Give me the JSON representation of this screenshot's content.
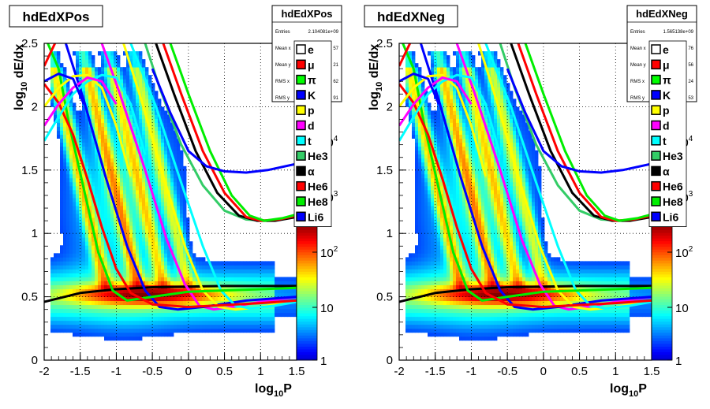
{
  "chart_data": [
    {
      "type": "heatmap",
      "title": "hdEdXPos",
      "xlabel": "log10P",
      "ylabel": "log10 dE/dx",
      "xlim": [
        -2,
        1.5
      ],
      "ylim": [
        0,
        2.5
      ],
      "xticks": [
        "-2",
        "-1.5",
        "-1",
        "-0.5",
        "0",
        "0.5",
        "1",
        "1.5"
      ],
      "yticks": [
        "0",
        "0.5",
        "1",
        "1.5",
        "2",
        "2.5"
      ],
      "grid": true,
      "zscale": "log",
      "zticks": [
        "1",
        "10",
        "10^2",
        "10^3",
        "10^4"
      ],
      "stats": {
        "title": "hdEdXPos",
        "rows": [
          {
            "label": "Entries",
            "value": "2.104081e+09"
          },
          {
            "label": "Mean x",
            "value": "57"
          },
          {
            "label": "Mean y",
            "value": "21"
          },
          {
            "label": "RMS x",
            "value": "62"
          },
          {
            "label": "RMS y",
            "value": "91"
          }
        ]
      },
      "legend": [
        {
          "name": "e",
          "color": "#ffffff"
        },
        {
          "name": "μ",
          "color": "#ff0000"
        },
        {
          "name": "π",
          "color": "#00ff00"
        },
        {
          "name": "K",
          "color": "#0000ff"
        },
        {
          "name": "p",
          "color": "#ffff00"
        },
        {
          "name": "d",
          "color": "#ff00ff"
        },
        {
          "name": "t",
          "color": "#00ffff"
        },
        {
          "name": "He3",
          "color": "#33cc66"
        },
        {
          "name": "α",
          "color": "#000000"
        },
        {
          "name": "He6",
          "color": "#ff0000"
        },
        {
          "name": "He8",
          "color": "#00ee00"
        },
        {
          "name": "Li6",
          "color": "#0000ff"
        }
      ]
    },
    {
      "type": "heatmap",
      "title": "hdEdXNeg",
      "xlabel": "log10P",
      "ylabel": "log10 dE/dx",
      "xlim": [
        -2,
        1.5
      ],
      "ylim": [
        0,
        2.5
      ],
      "xticks": [
        "-2",
        "-1.5",
        "-1",
        "-0.5",
        "0",
        "0.5",
        "1",
        "1.5"
      ],
      "yticks": [
        "0",
        "0.5",
        "1",
        "1.5",
        "2",
        "2.5"
      ],
      "grid": true,
      "zscale": "log",
      "zticks": [
        "1",
        "10",
        "10^2",
        "10^3",
        "10^4"
      ],
      "stats": {
        "title": "hdEdXNeg",
        "rows": [
          {
            "label": "Entries",
            "value": "1.565138e+09"
          },
          {
            "label": "Mean x",
            "value": "76"
          },
          {
            "label": "Mean y",
            "value": "56"
          },
          {
            "label": "RMS x",
            "value": "24"
          },
          {
            "label": "RMS y",
            "value": "53"
          }
        ]
      },
      "legend": [
        {
          "name": "e",
          "color": "#ffffff"
        },
        {
          "name": "μ",
          "color": "#ff0000"
        },
        {
          "name": "π",
          "color": "#00ff00"
        },
        {
          "name": "K",
          "color": "#0000ff"
        },
        {
          "name": "p",
          "color": "#ffff00"
        },
        {
          "name": "d",
          "color": "#ff00ff"
        },
        {
          "name": "t",
          "color": "#00ffff"
        },
        {
          "name": "He3",
          "color": "#33cc66"
        },
        {
          "name": "α",
          "color": "#000000"
        },
        {
          "name": "He6",
          "color": "#ff0000"
        },
        {
          "name": "He8",
          "color": "#00ee00"
        },
        {
          "name": "Li6",
          "color": "#0000ff"
        }
      ]
    }
  ],
  "curves": [
    {
      "color": "#000000",
      "points": [
        [
          -2,
          0.46
        ],
        [
          -1.5,
          0.53
        ],
        [
          -1,
          0.56
        ],
        [
          -0.5,
          0.575
        ],
        [
          0,
          0.58
        ],
        [
          0.5,
          0.585
        ],
        [
          1,
          0.585
        ],
        [
          1.5,
          0.585
        ]
      ]
    },
    {
      "color": "#ff00ff",
      "points": [
        [
          -1.2,
          2.5
        ],
        [
          -0.95,
          2.1
        ],
        [
          -0.6,
          1.5
        ],
        [
          -0.3,
          0.95
        ],
        [
          -0.05,
          0.6
        ],
        [
          0.15,
          0.43
        ],
        [
          0.35,
          0.4
        ],
        [
          0.6,
          0.42
        ],
        [
          1,
          0.46
        ],
        [
          1.5,
          0.5
        ]
      ]
    },
    {
      "color": "#0000ff",
      "points": [
        [
          -1.7,
          2.5
        ],
        [
          -1.45,
          2.05
        ],
        [
          -1.15,
          1.45
        ],
        [
          -0.85,
          0.9
        ],
        [
          -0.6,
          0.55
        ],
        [
          -0.4,
          0.42
        ],
        [
          -0.15,
          0.4
        ],
        [
          0.2,
          0.42
        ],
        [
          0.8,
          0.47
        ],
        [
          1.5,
          0.5
        ]
      ]
    },
    {
      "color": "#ffff00",
      "points": [
        [
          -0.9,
          2.5
        ],
        [
          -0.65,
          2.05
        ],
        [
          -0.35,
          1.45
        ],
        [
          -0.05,
          0.9
        ],
        [
          0.2,
          0.55
        ],
        [
          0.42,
          0.42
        ],
        [
          0.65,
          0.4
        ],
        [
          1.0,
          0.42
        ],
        [
          1.5,
          0.47
        ]
      ]
    },
    {
      "color": "#00ffff",
      "points": [
        [
          -0.8,
          2.5
        ],
        [
          -0.45,
          2.0
        ],
        [
          -0.1,
          1.4
        ],
        [
          0.2,
          0.9
        ],
        [
          0.45,
          0.55
        ],
        [
          0.65,
          0.43
        ],
        [
          0.85,
          0.41
        ],
        [
          1.2,
          0.43
        ],
        [
          1.5,
          0.46
        ]
      ]
    },
    {
      "color": "#00ee00",
      "points": [
        [
          -1.95,
          2.5
        ],
        [
          -1.8,
          2.3
        ],
        [
          -1.65,
          1.85
        ],
        [
          -1.45,
          1.35
        ],
        [
          -1.25,
          0.85
        ],
        [
          -1.05,
          0.55
        ],
        [
          -0.85,
          0.47
        ],
        [
          -0.5,
          0.5
        ],
        [
          0,
          0.54
        ],
        [
          1,
          0.56
        ],
        [
          1.5,
          0.57
        ]
      ]
    },
    {
      "color": "#33cc66",
      "points": [
        [
          -0.6,
          2.5
        ],
        [
          -0.4,
          2.15
        ],
        [
          -0.1,
          1.7
        ],
        [
          0.2,
          1.38
        ],
        [
          0.5,
          1.18
        ],
        [
          0.8,
          1.11
        ],
        [
          1.1,
          1.1
        ],
        [
          1.5,
          1.13
        ]
      ]
    },
    {
      "color": "#000000",
      "points": [
        [
          -0.45,
          2.5
        ],
        [
          -0.2,
          2.1
        ],
        [
          0.1,
          1.65
        ],
        [
          0.4,
          1.32
        ],
        [
          0.7,
          1.14
        ],
        [
          0.95,
          1.1
        ],
        [
          1.2,
          1.1
        ],
        [
          1.5,
          1.13
        ]
      ]
    },
    {
      "color": "#ff0000",
      "points": [
        [
          -0.35,
          2.5
        ],
        [
          -0.1,
          2.1
        ],
        [
          0.2,
          1.65
        ],
        [
          0.5,
          1.32
        ],
        [
          0.8,
          1.13
        ],
        [
          1.0,
          1.1
        ],
        [
          1.25,
          1.11
        ],
        [
          1.5,
          1.14
        ]
      ]
    },
    {
      "color": "#00ee00",
      "points": [
        [
          -0.25,
          2.5
        ],
        [
          0,
          2.1
        ],
        [
          0.3,
          1.65
        ],
        [
          0.6,
          1.3
        ],
        [
          0.85,
          1.14
        ],
        [
          1.05,
          1.1
        ],
        [
          1.3,
          1.12
        ],
        [
          1.5,
          1.15
        ]
      ]
    },
    {
      "color": "#0000ff",
      "points": [
        [
          -0.5,
          2.3
        ],
        [
          -0.25,
          1.95
        ],
        [
          0.0,
          1.65
        ],
        [
          0.25,
          1.53
        ],
        [
          0.5,
          1.49
        ],
        [
          0.8,
          1.48
        ],
        [
          1.1,
          1.5
        ],
        [
          1.5,
          1.55
        ]
      ]
    },
    {
      "color": "#ff0000",
      "points": [
        [
          -2,
          2.18
        ],
        [
          -1.8,
          2.03
        ],
        [
          -1.6,
          1.78
        ],
        [
          -1.4,
          1.43
        ],
        [
          -1.2,
          1.05
        ],
        [
          -1.0,
          0.72
        ],
        [
          -0.8,
          0.53
        ],
        [
          -0.5,
          0.44
        ],
        [
          0,
          0.42
        ],
        [
          1,
          0.45
        ],
        [
          1.5,
          0.47
        ]
      ]
    },
    {
      "color": "#ff0000",
      "points": [
        [
          -2,
          2.32
        ],
        [
          -1.85,
          2.5
        ]
      ]
    },
    {
      "color": "#ffff00",
      "points": [
        [
          -2,
          2.0
        ],
        [
          -1.8,
          2.15
        ],
        [
          -1.6,
          2.24
        ],
        [
          -1.4,
          2.25
        ],
        [
          -1.2,
          2.15
        ],
        [
          -1.0,
          1.85
        ],
        [
          -0.8,
          1.45
        ]
      ]
    },
    {
      "color": "#00ffff",
      "points": [
        [
          -2,
          1.73
        ],
        [
          -1.8,
          1.92
        ],
        [
          -1.6,
          2.1
        ],
        [
          -1.4,
          2.2
        ],
        [
          -1.2,
          2.25
        ],
        [
          -1.0,
          2.23
        ],
        [
          -0.8,
          2.02
        ],
        [
          -0.6,
          1.62
        ]
      ]
    },
    {
      "color": "#ff00ff",
      "points": [
        [
          -2,
          1.85
        ],
        [
          -1.8,
          2.02
        ],
        [
          -1.6,
          2.15
        ],
        [
          -1.4,
          2.23
        ],
        [
          -1.2,
          2.2
        ],
        [
          -1.0,
          2.02
        ]
      ]
    },
    {
      "color": "#0000ff",
      "points": [
        [
          -2,
          2.2
        ],
        [
          -1.8,
          2.26
        ],
        [
          -1.6,
          2.22
        ],
        [
          -1.45,
          2.02
        ]
      ]
    }
  ]
}
